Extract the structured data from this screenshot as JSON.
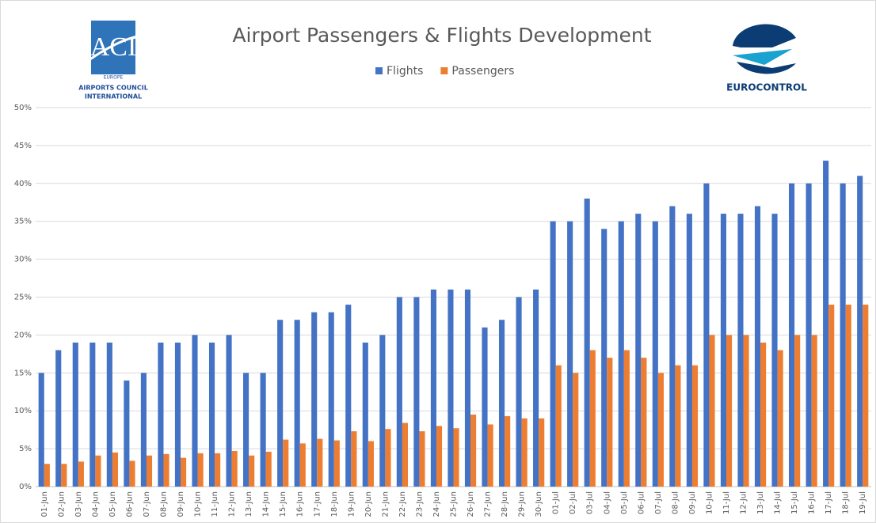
{
  "logos": {
    "aci": {
      "mark": "ACI",
      "lines": [
        "EUROPE",
        "AIRPORTS COUNCIL",
        "INTERNATIONAL"
      ]
    },
    "eurocontrol": "EUROCONTROL"
  },
  "chart_data": {
    "type": "bar",
    "title": "Airport Passengers & Flights Development",
    "categories": [
      "01-Jun",
      "02-Jun",
      "03-Jun",
      "04-Jun",
      "05-Jun",
      "06-Jun",
      "07-Jun",
      "08-Jun",
      "09-Jun",
      "10-Jun",
      "11-Jun",
      "12-Jun",
      "13-Jun",
      "14-Jun",
      "15-Jun",
      "16-Jun",
      "17-Jun",
      "18-Jun",
      "19-Jun",
      "20-Jun",
      "21-Jun",
      "22-Jun",
      "23-Jun",
      "24-Jun",
      "25-Jun",
      "26-Jun",
      "27-Jun",
      "28-Jun",
      "29-Jun",
      "30-Jun",
      "01-Jul",
      "02-Jul",
      "03-Jul",
      "04-Jul",
      "05-Jul",
      "06-Jul",
      "07-Jul",
      "08-Jul",
      "09-Jul",
      "10-Jul",
      "11-Jul",
      "12-Jul",
      "13-Jul",
      "14-Jul",
      "15-Jul",
      "16-Jul",
      "17-Jul",
      "18-Jul",
      "19-Jul"
    ],
    "series": [
      {
        "name": "Flights",
        "color": "#4472c4",
        "values": [
          15,
          18,
          19,
          19,
          19,
          14,
          15,
          19,
          19,
          20,
          19,
          20,
          15,
          15,
          22,
          22,
          23,
          23,
          24,
          19,
          20,
          25,
          25,
          26,
          26,
          26,
          21,
          22,
          25,
          26,
          35,
          35,
          38,
          34,
          35,
          36,
          35,
          37,
          36,
          40,
          36,
          36,
          37,
          36,
          40,
          40,
          43,
          40,
          41
        ]
      },
      {
        "name": "Passengers",
        "color": "#ed7d31",
        "values": [
          3,
          3,
          3.3,
          4.1,
          4.5,
          3.4,
          4.1,
          4.3,
          3.8,
          4.4,
          4.4,
          4.7,
          4.1,
          4.6,
          6.2,
          5.7,
          6.3,
          6.1,
          7.3,
          6,
          7.6,
          8.4,
          7.3,
          8,
          7.7,
          9.5,
          8.2,
          9.3,
          9,
          9,
          16,
          15,
          18,
          17,
          18,
          17,
          15,
          16,
          16,
          20,
          20,
          20,
          19,
          18,
          20,
          20,
          24,
          24,
          24
        ]
      }
    ],
    "ylim": [
      0,
      50
    ],
    "yticks": [
      {
        "value": 0,
        "label": "0%"
      },
      {
        "value": 5,
        "label": "5%"
      },
      {
        "value": 10,
        "label": "10%"
      },
      {
        "value": 15,
        "label": "15%"
      },
      {
        "value": 20,
        "label": "20%"
      },
      {
        "value": 25,
        "label": "25%"
      },
      {
        "value": 30,
        "label": "30%"
      },
      {
        "value": 35,
        "label": "35%"
      },
      {
        "value": 40,
        "label": "40%"
      },
      {
        "value": 45,
        "label": "45%"
      },
      {
        "value": 50,
        "label": "50%"
      }
    ],
    "grid": true,
    "legend": "top"
  }
}
